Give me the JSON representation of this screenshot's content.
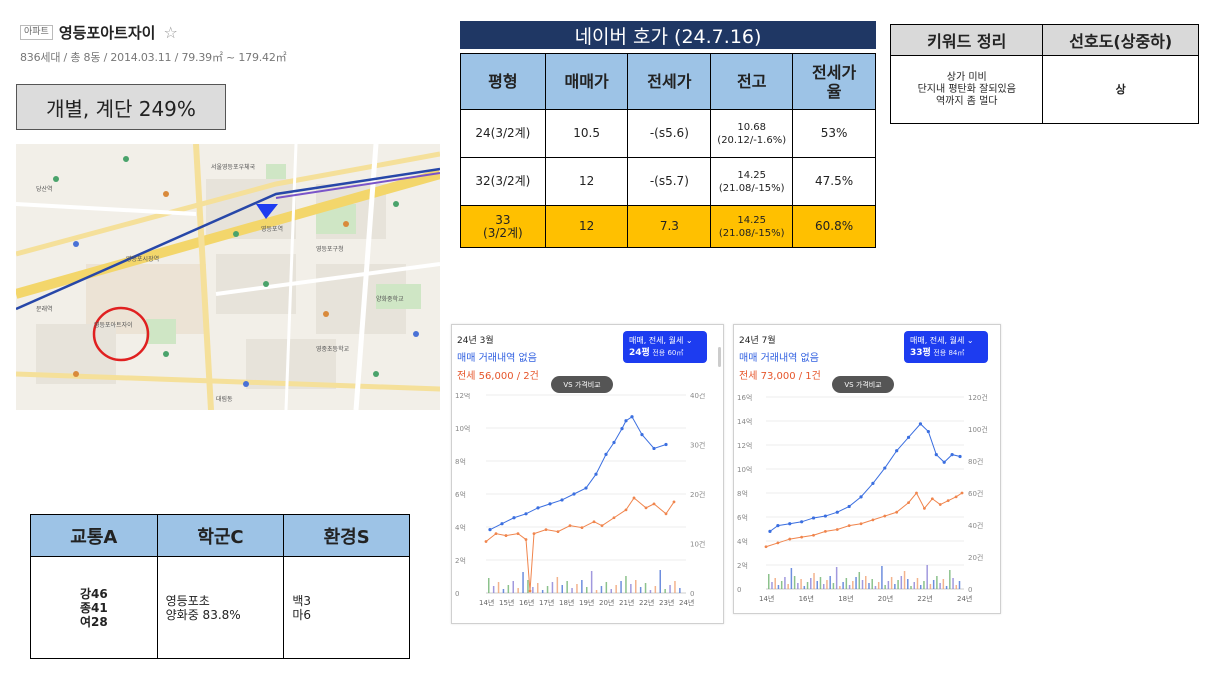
{
  "listing": {
    "badge": "아파트",
    "name": "영등포아트자이",
    "meta": "836세대 / 총 8동 / 2014.03.11 / 79.39㎡ ~ 179.42㎡",
    "ratio_note": "개별, 계단 249%"
  },
  "naver_quote": {
    "title": "네이버 호가 (24.7.16)",
    "headers": [
      "평형",
      "매매가",
      "전세가",
      "전고",
      "전세가\n율"
    ],
    "rows": [
      {
        "size": "24(3/2계)",
        "price": "10.5",
        "jeonse": "-(s5.6)",
        "peak": "10.68",
        "peak_sub": "(20.12/-1.6%)",
        "rate": "53%"
      },
      {
        "size": "32(3/2계)",
        "price": "12",
        "jeonse": "-(s5.7)",
        "peak": "14.25",
        "peak_sub": "(21.08/-15%)",
        "rate": "47.5%"
      },
      {
        "size": "33",
        "size_sub": "(3/2계)",
        "price": "12",
        "jeonse": "7.3",
        "peak": "14.25",
        "peak_sub": "(21.08/-15%)",
        "rate": "60.8%"
      }
    ],
    "highlight_color": "#ffc000"
  },
  "keywords": {
    "headers": [
      "키워드 정리",
      "선호도(상중하)"
    ],
    "note_lines": [
      "상가 미비",
      "단지내 평탄화 잘되있음",
      "역까지 좀 멀다"
    ],
    "preference": "상"
  },
  "scores": {
    "headers": [
      "교통A",
      "학군C",
      "환경S"
    ],
    "traffic": [
      "강46",
      "종41",
      "여28"
    ],
    "school": [
      "영등포초",
      "양화중 83.8%"
    ],
    "environment": [
      "백3",
      "마6"
    ]
  },
  "map": {
    "labels": [
      "영등포아트자이",
      "서울영등포우체국",
      "영등포역",
      "영등포구청",
      "문래역",
      "당산역",
      "영등포시장역",
      "영중초등학교",
      "양화중학교",
      "대림동"
    ],
    "marker_color": "#e02020"
  },
  "charts": [
    {
      "period": "24년 3월",
      "sale_note": "매매 거래내역 없음",
      "jeonse_note": "전세 56,000 / 2건",
      "filter_line1": "매매, 전세, 월세",
      "filter_size": "24평",
      "filter_area": "전용 60㎡",
      "vs_label": "VS 가격비교",
      "y_left": [
        "12억",
        "10억",
        "8억",
        "6억",
        "4억",
        "2억",
        "0"
      ],
      "y_right": [
        "40건",
        "30건",
        "20건",
        "10건",
        "0"
      ],
      "x_labels": [
        "14년",
        "15년",
        "16년",
        "17년",
        "18년",
        "19년",
        "20년",
        "21년",
        "22년",
        "23년",
        "24년"
      ]
    },
    {
      "period": "24년 7월",
      "sale_note": "매매 거래내역 없음",
      "jeonse_note": "전세 73,000 / 1건",
      "filter_line1": "매매, 전세, 월세",
      "filter_size": "33평",
      "filter_area": "전용 84㎡",
      "vs_label": "VS 가격비교",
      "y_left": [
        "16억",
        "14억",
        "12억",
        "10억",
        "8억",
        "6억",
        "4억",
        "2억",
        "0"
      ],
      "y_right": [
        "120건",
        "100건",
        "80건",
        "60건",
        "40건",
        "20건",
        "0"
      ],
      "x_labels": [
        "14년",
        "16년",
        "18년",
        "20년",
        "22년",
        "24년"
      ]
    }
  ],
  "colors": {
    "sale_line": "#3b6fe0",
    "jeonse_line": "#f0854d",
    "header_navy": "#1f3764",
    "header_blue": "#9dc3e6"
  }
}
